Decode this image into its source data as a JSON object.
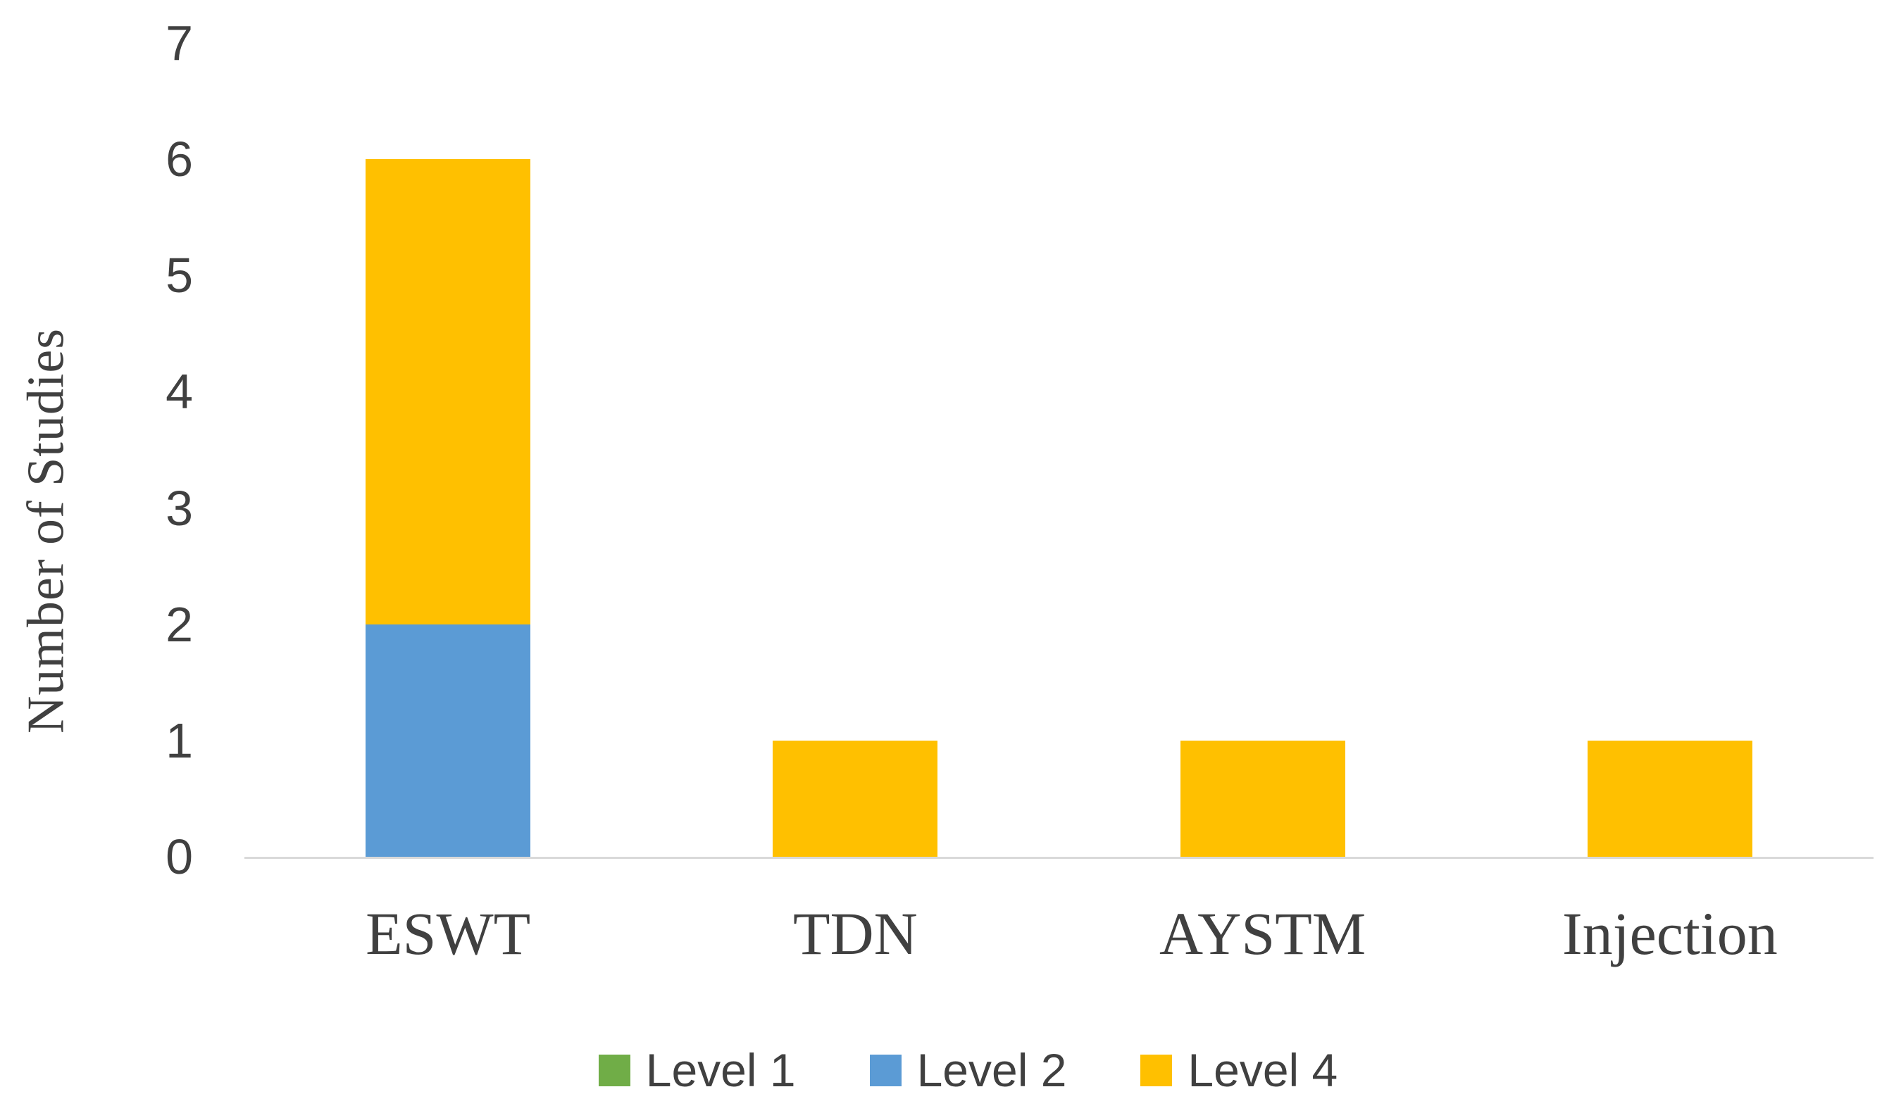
{
  "chart_data": {
    "type": "bar",
    "stacked": true,
    "categories": [
      "ESWT",
      "TDN",
      "AYSTM",
      "Injection"
    ],
    "series": [
      {
        "name": "Level 1",
        "color": "#70AD47",
        "values": [
          0,
          0,
          0,
          0
        ]
      },
      {
        "name": "Level 2",
        "color": "#5B9BD5",
        "values": [
          2,
          0,
          0,
          0
        ]
      },
      {
        "name": "Level 4",
        "color": "#FFC000",
        "values": [
          4,
          1,
          1,
          1
        ]
      }
    ],
    "stack_totals": [
      6,
      1,
      1,
      1
    ],
    "title": "",
    "xlabel": "",
    "ylabel": "Number of Studies",
    "ylim": [
      0,
      7
    ],
    "yticks": [
      0,
      1,
      2,
      3,
      4,
      5,
      6,
      7
    ],
    "grid": false,
    "legend_position": "bottom",
    "legend_labels": [
      "Level 1",
      "Level 2",
      "Level 4"
    ]
  },
  "colors": {
    "axis_line": "#D9D9D9",
    "text": "#404040"
  }
}
